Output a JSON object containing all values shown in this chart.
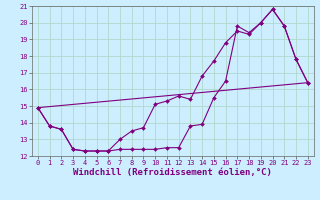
{
  "xlabel": "Windchill (Refroidissement éolien,°C)",
  "ylabel": "",
  "background_color": "#cceeff",
  "grid_color": "#b0d8cc",
  "line_color": "#800080",
  "xlim": [
    -0.5,
    23.5
  ],
  "ylim": [
    12,
    21
  ],
  "xticks": [
    0,
    1,
    2,
    3,
    4,
    5,
    6,
    7,
    8,
    9,
    10,
    11,
    12,
    13,
    14,
    15,
    16,
    17,
    18,
    19,
    20,
    21,
    22,
    23
  ],
  "yticks": [
    12,
    13,
    14,
    15,
    16,
    17,
    18,
    19,
    20,
    21
  ],
  "line1_x": [
    0,
    1,
    2,
    3,
    4,
    5,
    6,
    7,
    8,
    9,
    10,
    11,
    12,
    13,
    14,
    15,
    16,
    17,
    18,
    19,
    20,
    21,
    22,
    23
  ],
  "line1_y": [
    14.9,
    13.8,
    13.6,
    12.4,
    12.3,
    12.3,
    12.3,
    12.4,
    12.4,
    12.4,
    12.4,
    12.5,
    12.5,
    13.8,
    13.9,
    15.5,
    16.5,
    19.8,
    19.4,
    20.0,
    20.8,
    19.8,
    17.8,
    16.4
  ],
  "line2_x": [
    0,
    1,
    2,
    3,
    4,
    5,
    6,
    7,
    8,
    9,
    10,
    11,
    12,
    13,
    14,
    15,
    16,
    17,
    18,
    19,
    20,
    21,
    22,
    23
  ],
  "line2_y": [
    14.9,
    13.8,
    13.6,
    12.4,
    12.3,
    12.3,
    12.3,
    13.0,
    13.5,
    13.7,
    15.1,
    15.3,
    15.6,
    15.4,
    16.8,
    17.7,
    18.8,
    19.5,
    19.3,
    20.0,
    20.8,
    19.8,
    17.8,
    16.4
  ],
  "line3_x": [
    0,
    23
  ],
  "line3_y": [
    14.9,
    16.4
  ],
  "font_size_tick": 5.0,
  "font_size_label": 6.5
}
